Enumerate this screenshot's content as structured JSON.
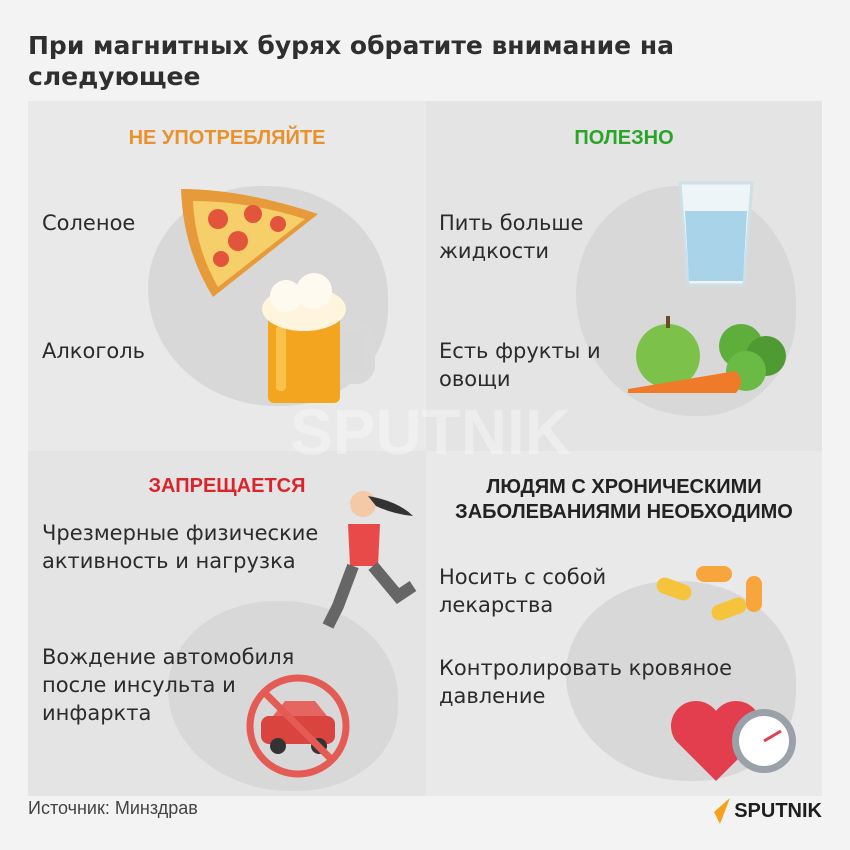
{
  "title": "При магнитных бурях обратите внимание на следующее",
  "colors": {
    "dont_consume": "#e8922e",
    "useful": "#2aa52a",
    "forbidden": "#d8262c",
    "chronic": "#222222",
    "logo_accent": "#f5a11c"
  },
  "quadrants": [
    {
      "heading": "НЕ УПОТРЕБЛЯЙТЕ",
      "items": [
        {
          "text": "Соленое",
          "icon": "pizza-icon"
        },
        {
          "text": "Алкоголь",
          "icon": "beer-mug-icon"
        }
      ]
    },
    {
      "heading": "ПОЛЕЗНО",
      "items": [
        {
          "text": "Пить больше жидкости",
          "icon": "water-glass-icon"
        },
        {
          "text": "Есть фрукты и овощи",
          "icon": "fruits-vegetables-icon"
        }
      ]
    },
    {
      "heading": "ЗАПРЕЩАЕТСЯ",
      "items": [
        {
          "text": "Чрезмерные физические активность и нагрузка",
          "icon": "runner-icon"
        },
        {
          "text": "Вождение автомобиля после инсульта и инфаркта",
          "icon": "no-car-icon"
        }
      ]
    },
    {
      "heading": "ЛЮДЯМ С ХРОНИЧЕСКИМИ ЗАБОЛЕВАНИЯМИ НЕОБХОДИМО",
      "items": [
        {
          "text": "Носить с собой лекарства",
          "icon": "pills-icon"
        },
        {
          "text": "Контролировать кровяное давление",
          "icon": "heart-gauge-icon"
        }
      ]
    }
  ],
  "source": "Источник: Минздрав",
  "logo": "SPUTNIK",
  "watermark": "SPUTNIK"
}
